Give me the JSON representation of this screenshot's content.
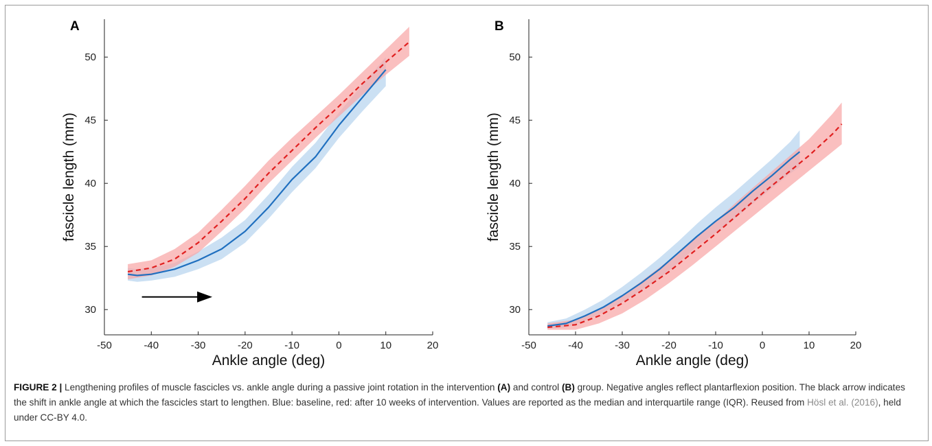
{
  "chart_data": [
    {
      "panel": "A",
      "type": "line",
      "xlabel": "Ankle angle (deg)",
      "ylabel": "fascicle length (mm)",
      "xlim": [
        -50,
        20
      ],
      "ylim": [
        28,
        53
      ],
      "xticks": [
        -50,
        -40,
        -30,
        -20,
        -10,
        0,
        10,
        20
      ],
      "yticks": [
        30,
        35,
        40,
        45,
        50
      ],
      "series": [
        {
          "color": "#1f6fbf",
          "style": "solid",
          "x": [
            -45,
            -43,
            -40,
            -35,
            -30,
            -25,
            -20,
            -15,
            -10,
            -5,
            0,
            5,
            10
          ],
          "median": [
            32.8,
            32.7,
            32.8,
            33.2,
            33.9,
            34.8,
            36.2,
            38.1,
            40.3,
            42.1,
            44.6,
            46.8,
            49.0
          ],
          "q1": [
            32.3,
            32.2,
            32.3,
            32.6,
            33.2,
            34.0,
            35.3,
            37.2,
            39.3,
            41.2,
            43.6,
            45.7,
            47.7
          ],
          "q3": [
            33.3,
            33.2,
            33.3,
            33.7,
            34.6,
            35.7,
            37.1,
            39.1,
            41.3,
            43.2,
            45.6,
            47.8,
            50.0
          ]
        },
        {
          "color": "#e02020",
          "style": "dashed",
          "x": [
            -45,
            -40,
            -35,
            -30,
            -25,
            -20,
            -15,
            -10,
            -5,
            0,
            5,
            10,
            15
          ],
          "median": [
            33.0,
            33.3,
            34.0,
            35.3,
            37.0,
            38.8,
            40.8,
            42.6,
            44.4,
            46.1,
            47.9,
            49.6,
            51.2
          ],
          "q1": [
            32.4,
            32.7,
            33.4,
            34.5,
            36.2,
            38.0,
            40.0,
            41.8,
            43.6,
            45.3,
            47.0,
            48.6,
            50.1
          ],
          "q3": [
            33.6,
            33.9,
            34.8,
            36.1,
            37.9,
            39.8,
            41.8,
            43.6,
            45.3,
            47.0,
            48.8,
            50.6,
            52.4
          ]
        }
      ],
      "arrow": {
        "x_from": -42,
        "x_to": -27,
        "y": 31.0
      }
    },
    {
      "panel": "B",
      "type": "line",
      "xlabel": "Ankle angle (deg)",
      "ylabel": "fascicle length (mm)",
      "xlim": [
        -50,
        20
      ],
      "ylim": [
        28,
        53
      ],
      "xticks": [
        -50,
        -40,
        -30,
        -20,
        -10,
        0,
        10,
        20
      ],
      "yticks": [
        30,
        35,
        40,
        45,
        50
      ],
      "series": [
        {
          "color": "#1f6fbf",
          "style": "solid",
          "x": [
            -46,
            -42,
            -38,
            -34,
            -30,
            -26,
            -22,
            -18,
            -14,
            -10,
            -6,
            -2,
            2,
            6,
            8
          ],
          "median": [
            28.7,
            28.9,
            29.5,
            30.2,
            31.1,
            32.1,
            33.2,
            34.5,
            35.8,
            37.0,
            38.1,
            39.4,
            40.6,
            41.9,
            42.5
          ],
          "q1": [
            28.5,
            28.6,
            29.1,
            29.8,
            30.6,
            31.5,
            32.5,
            33.7,
            35.0,
            36.1,
            37.2,
            38.4,
            39.6,
            40.8,
            41.3
          ],
          "q3": [
            29.0,
            29.3,
            30.0,
            30.8,
            31.8,
            32.9,
            34.1,
            35.4,
            36.8,
            38.1,
            39.3,
            40.6,
            41.9,
            43.3,
            44.2
          ]
        },
        {
          "color": "#e02020",
          "style": "dashed",
          "x": [
            -46,
            -40,
            -35,
            -30,
            -25,
            -20,
            -15,
            -10,
            -5,
            0,
            5,
            10,
            15,
            17
          ],
          "median": [
            28.6,
            28.8,
            29.5,
            30.5,
            31.7,
            33.0,
            34.5,
            36.0,
            37.6,
            39.2,
            40.7,
            42.2,
            43.9,
            44.7
          ],
          "q1": [
            28.4,
            28.4,
            28.9,
            29.7,
            30.8,
            32.1,
            33.5,
            35.0,
            36.5,
            38.0,
            39.5,
            41.0,
            42.5,
            43.1
          ],
          "q3": [
            28.9,
            29.2,
            30.0,
            31.1,
            32.5,
            33.9,
            35.4,
            37.0,
            38.7,
            40.3,
            41.9,
            43.5,
            45.5,
            46.4
          ]
        }
      ]
    }
  ],
  "caption": {
    "label": "FIGURE 2 |",
    "t1": " Lengthening profiles of muscle fascicles vs. ankle angle during a passive joint rotation in the intervention ",
    "a": "(A)",
    "t2": " and control ",
    "b": "(B)",
    "t3": " group. Negative angles reflect plantarflexion position. The black arrow indicates the shift in ankle angle at which the fascicles start to lengthen. Blue: baseline, red: after 10 weeks of intervention. Values are reported as the median and interquartile range (IQR). Reused from ",
    "link": "Hösl et al. (2016)",
    "t4": ", held under CC-BY 4.0."
  },
  "colors": {
    "blue": "#1f6fbf",
    "blue_band": "#b7d4ee",
    "red": "#e02020",
    "red_band": "#f8a6a6"
  }
}
